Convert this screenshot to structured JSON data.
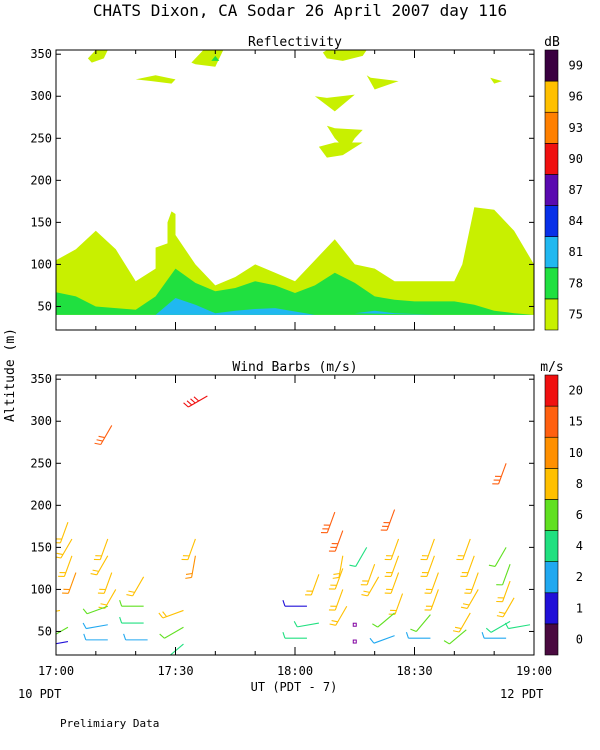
{
  "title": "CHATS Dixon, CA  Sodar  26 April 2007  day 116",
  "footer_note": "Prelimiary Data",
  "shared_y_label": "Altitude (m)",
  "chart_data": [
    {
      "type": "area",
      "title": "Reflectivity",
      "xlabel": "UT  (PDT - 7)",
      "ylabel": "Altitude (m)",
      "x_ticks": [
        "17:00",
        "17:30",
        "18:00",
        "18:30",
        "19:00"
      ],
      "xlim_minutes_after_1700": [
        0,
        120
      ],
      "ylim": [
        22,
        355
      ],
      "y_ticks": [
        50,
        100,
        150,
        200,
        250,
        300,
        350
      ],
      "grid": false,
      "colorbar": {
        "title": "dB",
        "labels": [
          "75",
          "78",
          "81",
          "84",
          "87",
          "90",
          "93",
          "96",
          "99"
        ],
        "colors": [
          "#c8f000",
          "#20e040",
          "#20b8f0",
          "#0830e8",
          "#5a0ab0",
          "#f01010",
          "#ff8000",
          "#ffc000",
          "#3a0040"
        ]
      },
      "series": [
        {
          "level": "75",
          "color": "#c8f000",
          "polygons": [
            [
              [
                0,
                40
              ],
              [
                0,
                105
              ],
              [
                5,
                118
              ],
              [
                10,
                140
              ],
              [
                15,
                118
              ],
              [
                20,
                80
              ],
              [
                25,
                95
              ],
              [
                25,
                120
              ],
              [
                28,
                125
              ],
              [
                28,
                150
              ],
              [
                29,
                163
              ],
              [
                30,
                160
              ],
              [
                30,
                135
              ],
              [
                35,
                100
              ],
              [
                40,
                75
              ],
              [
                45,
                85
              ],
              [
                50,
                100
              ],
              [
                55,
                90
              ],
              [
                60,
                80
              ],
              [
                65,
                105
              ],
              [
                70,
                130
              ],
              [
                75,
                100
              ],
              [
                80,
                95
              ],
              [
                85,
                80
              ],
              [
                90,
                80
              ],
              [
                100,
                80
              ],
              [
                102,
                100
              ],
              [
                105,
                168
              ],
              [
                110,
                165
              ],
              [
                115,
                140
              ],
              [
                120,
                100
              ],
              [
                120,
                40
              ]
            ],
            [
              [
                8,
                345
              ],
              [
                10,
                355
              ],
              [
                13,
                355
              ],
              [
                12,
                345
              ],
              [
                9,
                340
              ]
            ],
            [
              [
                20,
                320
              ],
              [
                25,
                325
              ],
              [
                28,
                322
              ],
              [
                30,
                320
              ],
              [
                29,
                315
              ],
              [
                24,
                318
              ]
            ],
            [
              [
                34,
                340
              ],
              [
                37,
                355
              ],
              [
                42,
                355
              ],
              [
                40,
                335
              ],
              [
                35,
                338
              ]
            ],
            [
              [
                67,
                352
              ],
              [
                68,
                345
              ],
              [
                72,
                342
              ],
              [
                77,
                348
              ],
              [
                78,
                355
              ],
              [
                68,
                355
              ]
            ],
            [
              [
                78,
                325
              ],
              [
                80,
                308
              ],
              [
                86,
                318
              ],
              [
                79,
                322
              ]
            ],
            [
              [
                65,
                300
              ],
              [
                70,
                282
              ],
              [
                75,
                302
              ],
              [
                68,
                298
              ]
            ],
            [
              [
                68,
                265
              ],
              [
                70,
                250
              ],
              [
                73,
                235
              ],
              [
                75,
                250
              ],
              [
                77,
                260
              ],
              [
                70,
                262
              ]
            ],
            [
              [
                66,
                240
              ],
              [
                68,
                227
              ],
              [
                72,
                230
              ],
              [
                77,
                245
              ],
              [
                70,
                245
              ]
            ],
            [
              [
                109,
                322
              ],
              [
                110,
                315
              ],
              [
                112,
                318
              ]
            ]
          ]
        },
        {
          "level": "78",
          "color": "#20e040",
          "polygons": [
            [
              [
                0,
                40
              ],
              [
                0,
                67
              ],
              [
                5,
                62
              ],
              [
                10,
                50
              ],
              [
                15,
                48
              ],
              [
                20,
                46
              ],
              [
                25,
                62
              ],
              [
                30,
                95
              ],
              [
                35,
                78
              ],
              [
                40,
                68
              ],
              [
                45,
                72
              ],
              [
                50,
                80
              ],
              [
                55,
                75
              ],
              [
                60,
                66
              ],
              [
                65,
                75
              ],
              [
                70,
                90
              ],
              [
                75,
                78
              ],
              [
                80,
                62
              ],
              [
                85,
                58
              ],
              [
                90,
                56
              ],
              [
                100,
                56
              ],
              [
                105,
                52
              ],
              [
                110,
                45
              ],
              [
                115,
                42
              ],
              [
                120,
                40
              ]
            ],
            [
              [
                39,
                342
              ],
              [
                40,
                348
              ],
              [
                41,
                342
              ]
            ]
          ]
        },
        {
          "level": "81",
          "color": "#20b8f0",
          "polygons": [
            [
              [
                25,
                40
              ],
              [
                28,
                52
              ],
              [
                30,
                60
              ],
              [
                35,
                52
              ],
              [
                40,
                42
              ],
              [
                45,
                45
              ],
              [
                50,
                47
              ],
              [
                55,
                48
              ],
              [
                60,
                44
              ],
              [
                65,
                40
              ]
            ],
            [
              [
                75,
                42
              ],
              [
                80,
                45
              ],
              [
                85,
                42
              ],
              [
                90,
                41
              ],
              [
                95,
                40
              ]
            ]
          ]
        }
      ]
    },
    {
      "type": "scatter",
      "title": "Wind Barbs (m/s)",
      "xlabel": "UT  (PDT - 7)",
      "ylabel": "Altitude (m)",
      "x_ticks": [
        "17:00",
        "17:30",
        "18:00",
        "18:30",
        "19:00"
      ],
      "x_tick_sublabels": {
        "left": "10 PDT",
        "right": "12 PDT"
      },
      "xlim_minutes_after_1700": [
        0,
        120
      ],
      "ylim": [
        22,
        355
      ],
      "y_ticks": [
        50,
        100,
        150,
        200,
        250,
        300,
        350
      ],
      "grid": false,
      "colorbar": {
        "title": "m/s",
        "labels": [
          "0",
          "1",
          "2",
          "4",
          "6",
          "8",
          "10",
          "15",
          "20"
        ],
        "colors": [
          "#4a0a40",
          "#2010d8",
          "#20a8f0",
          "#20e080",
          "#60e020",
          "#ffc000",
          "#ff9000",
          "#ff6010",
          "#f01010"
        ]
      },
      "barbs": [
        {
          "t": 3,
          "z": 180,
          "dir": 200,
          "spd": 9
        },
        {
          "t": 4,
          "z": 160,
          "dir": 210,
          "spd": 9
        },
        {
          "t": 4,
          "z": 140,
          "dir": 200,
          "spd": 9
        },
        {
          "t": 5,
          "z": 120,
          "dir": 200,
          "spd": 10
        },
        {
          "t": 1,
          "z": 75,
          "dir": 260,
          "spd": 9
        },
        {
          "t": 3,
          "z": 55,
          "dir": 240,
          "spd": 6
        },
        {
          "t": 3,
          "z": 38,
          "dir": 260,
          "spd": 1
        },
        {
          "t": 13,
          "z": 160,
          "dir": 200,
          "spd": 9
        },
        {
          "t": 13,
          "z": 140,
          "dir": 210,
          "spd": 9
        },
        {
          "t": 14,
          "z": 120,
          "dir": 200,
          "spd": 9
        },
        {
          "t": 15,
          "z": 100,
          "dir": 210,
          "spd": 9
        },
        {
          "t": 13,
          "z": 80,
          "dir": 250,
          "spd": 6
        },
        {
          "t": 13,
          "z": 58,
          "dir": 260,
          "spd": 3
        },
        {
          "t": 13,
          "z": 40,
          "dir": 270,
          "spd": 2
        },
        {
          "t": 14,
          "z": 295,
          "dir": 210,
          "spd": 15
        },
        {
          "t": 22,
          "z": 115,
          "dir": 210,
          "spd": 9
        },
        {
          "t": 22,
          "z": 80,
          "dir": 270,
          "spd": 6
        },
        {
          "t": 22,
          "z": 60,
          "dir": 270,
          "spd": 4
        },
        {
          "t": 23,
          "z": 40,
          "dir": 270,
          "spd": 3
        },
        {
          "t": 32,
          "z": 75,
          "dir": 250,
          "spd": 9
        },
        {
          "t": 32,
          "z": 55,
          "dir": 240,
          "spd": 6
        },
        {
          "t": 32,
          "z": 35,
          "dir": 230,
          "spd": 5
        },
        {
          "t": 35,
          "z": 160,
          "dir": 200,
          "spd": 9
        },
        {
          "t": 35,
          "z": 140,
          "dir": 190,
          "spd": 10
        },
        {
          "t": 38,
          "z": 330,
          "dir": 240,
          "spd": 20
        },
        {
          "t": 63,
          "z": 80,
          "dir": 270,
          "spd": 1
        },
        {
          "t": 63,
          "z": 42,
          "dir": 270,
          "spd": 5
        },
        {
          "t": 66,
          "z": 118,
          "dir": 200,
          "spd": 9
        },
        {
          "t": 66,
          "z": 60,
          "dir": 260,
          "spd": 5
        },
        {
          "t": 70,
          "z": 192,
          "dir": 200,
          "spd": 15
        },
        {
          "t": 72,
          "z": 170,
          "dir": 200,
          "spd": 15
        },
        {
          "t": 72,
          "z": 140,
          "dir": 190,
          "spd": 9
        },
        {
          "t": 72,
          "z": 125,
          "dir": 200,
          "spd": 8
        },
        {
          "t": 72,
          "z": 100,
          "dir": 200,
          "spd": 8
        },
        {
          "t": 73,
          "z": 80,
          "dir": 210,
          "spd": 9
        },
        {
          "t": 78,
          "z": 150,
          "dir": 210,
          "spd": 4
        },
        {
          "t": 80,
          "z": 130,
          "dir": 200,
          "spd": 8
        },
        {
          "t": 81,
          "z": 115,
          "dir": 210,
          "spd": 8
        },
        {
          "t": 85,
          "z": 195,
          "dir": 200,
          "spd": 15
        },
        {
          "t": 86,
          "z": 160,
          "dir": 200,
          "spd": 9
        },
        {
          "t": 86,
          "z": 140,
          "dir": 200,
          "spd": 9
        },
        {
          "t": 86,
          "z": 120,
          "dir": 200,
          "spd": 9
        },
        {
          "t": 87,
          "z": 95,
          "dir": 200,
          "spd": 9
        },
        {
          "t": 85,
          "z": 72,
          "dir": 230,
          "spd": 6
        },
        {
          "t": 85,
          "z": 45,
          "dir": 250,
          "spd": 2
        },
        {
          "t": 95,
          "z": 160,
          "dir": 200,
          "spd": 9
        },
        {
          "t": 95,
          "z": 140,
          "dir": 200,
          "spd": 9
        },
        {
          "t": 96,
          "z": 120,
          "dir": 200,
          "spd": 9
        },
        {
          "t": 96,
          "z": 100,
          "dir": 200,
          "spd": 9
        },
        {
          "t": 94,
          "z": 70,
          "dir": 220,
          "spd": 6
        },
        {
          "t": 94,
          "z": 42,
          "dir": 270,
          "spd": 3
        },
        {
          "t": 104,
          "z": 160,
          "dir": 200,
          "spd": 9
        },
        {
          "t": 105,
          "z": 140,
          "dir": 200,
          "spd": 9
        },
        {
          "t": 106,
          "z": 120,
          "dir": 200,
          "spd": 9
        },
        {
          "t": 106,
          "z": 100,
          "dir": 210,
          "spd": 9
        },
        {
          "t": 104,
          "z": 72,
          "dir": 210,
          "spd": 9
        },
        {
          "t": 103,
          "z": 52,
          "dir": 230,
          "spd": 6
        },
        {
          "t": 113,
          "z": 150,
          "dir": 210,
          "spd": 6
        },
        {
          "t": 114,
          "z": 130,
          "dir": 200,
          "spd": 6
        },
        {
          "t": 114,
          "z": 110,
          "dir": 200,
          "spd": 9
        },
        {
          "t": 115,
          "z": 90,
          "dir": 210,
          "spd": 8
        },
        {
          "t": 114,
          "z": 62,
          "dir": 240,
          "spd": 5
        },
        {
          "t": 113,
          "z": 42,
          "dir": 270,
          "spd": 3
        },
        {
          "t": 119,
          "z": 58,
          "dir": 260,
          "spd": 5
        },
        {
          "t": 113,
          "z": 250,
          "dir": 200,
          "spd": 15
        }
      ],
      "markers": [
        {
          "t": 75,
          "z": 38,
          "color": "#8000a0"
        },
        {
          "t": 75,
          "z": 58,
          "color": "#8000a0"
        }
      ]
    }
  ]
}
